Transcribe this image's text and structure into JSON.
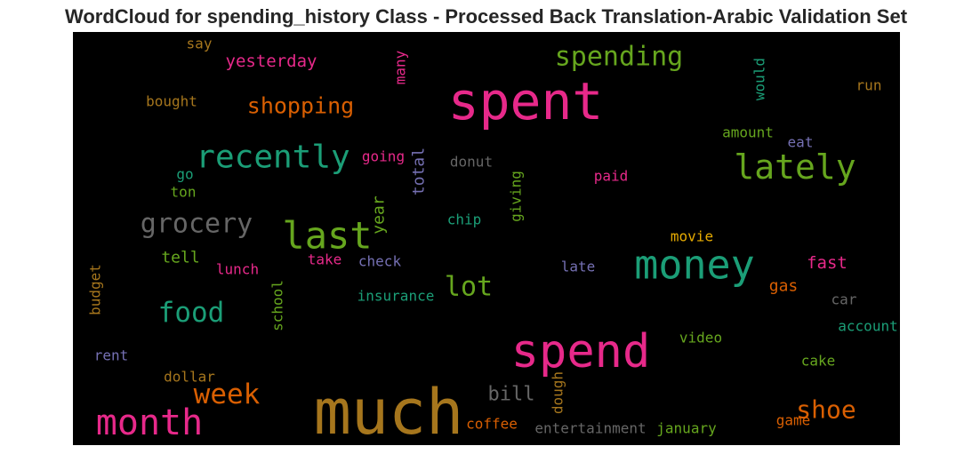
{
  "title": "WordCloud for spending_history Class - Processed Back Translation-Arabic Validation Set",
  "chart_data": {
    "type": "wordcloud",
    "title": "WordCloud for spending_history Class - Processed Back Translation-Arabic Validation Set",
    "background": "#000000",
    "palette": "Dark2",
    "words": [
      {
        "text": "much",
        "color": "#a6761d",
        "orientation": "horizontal"
      },
      {
        "text": "spent",
        "color": "#e7298a",
        "orientation": "horizontal"
      },
      {
        "text": "spend",
        "color": "#e7298a",
        "orientation": "horizontal"
      },
      {
        "text": "money",
        "color": "#1b9e77",
        "orientation": "horizontal"
      },
      {
        "text": "last",
        "color": "#66a61e",
        "orientation": "horizontal"
      },
      {
        "text": "month",
        "color": "#e7298a",
        "orientation": "horizontal"
      },
      {
        "text": "recently",
        "color": "#1b9e77",
        "orientation": "horizontal"
      },
      {
        "text": "lately",
        "color": "#66a61e",
        "orientation": "horizontal"
      },
      {
        "text": "grocery",
        "color": "#666666",
        "orientation": "horizontal"
      },
      {
        "text": "food",
        "color": "#1b9e77",
        "orientation": "horizontal"
      },
      {
        "text": "spending",
        "color": "#66a61e",
        "orientation": "horizontal"
      },
      {
        "text": "week",
        "color": "#d95f02",
        "orientation": "horizontal"
      },
      {
        "text": "shoe",
        "color": "#d95f02",
        "orientation": "horizontal"
      },
      {
        "text": "lot",
        "color": "#66a61e",
        "orientation": "horizontal"
      },
      {
        "text": "shopping",
        "color": "#d95f02",
        "orientation": "horizontal"
      },
      {
        "text": "yesterday",
        "color": "#e7298a",
        "orientation": "horizontal"
      },
      {
        "text": "bill",
        "color": "#666666",
        "orientation": "horizontal"
      },
      {
        "text": "total",
        "color": "#7570b3",
        "orientation": "vertical"
      },
      {
        "text": "year",
        "color": "#66a61e",
        "orientation": "vertical"
      },
      {
        "text": "fast",
        "color": "#e7298a",
        "orientation": "horizontal"
      },
      {
        "text": "gas",
        "color": "#d95f02",
        "orientation": "horizontal"
      },
      {
        "text": "dough",
        "color": "#a6761d",
        "orientation": "vertical"
      },
      {
        "text": "many",
        "color": "#e7298a",
        "orientation": "vertical"
      },
      {
        "text": "would",
        "color": "#1b9e77",
        "orientation": "vertical"
      },
      {
        "text": "budget",
        "color": "#a6761d",
        "orientation": "vertical"
      },
      {
        "text": "school",
        "color": "#66a61e",
        "orientation": "vertical"
      },
      {
        "text": "giving",
        "color": "#66a61e",
        "orientation": "vertical"
      },
      {
        "text": "tell",
        "color": "#66a61e",
        "orientation": "horizontal"
      },
      {
        "text": "coffee",
        "color": "#d95f02",
        "orientation": "horizontal"
      },
      {
        "text": "game",
        "color": "#d95f02",
        "orientation": "horizontal"
      },
      {
        "text": "entertainment",
        "color": "#666666",
        "orientation": "horizontal"
      },
      {
        "text": "january",
        "color": "#66a61e",
        "orientation": "horizontal"
      },
      {
        "text": "insurance",
        "color": "#1b9e77",
        "orientation": "horizontal"
      },
      {
        "text": "account",
        "color": "#1b9e77",
        "orientation": "horizontal"
      },
      {
        "text": "amount",
        "color": "#66a61e",
        "orientation": "horizontal"
      },
      {
        "text": "bought",
        "color": "#a6761d",
        "orientation": "horizontal"
      },
      {
        "text": "dollar",
        "color": "#a6761d",
        "orientation": "horizontal"
      },
      {
        "text": "lunch",
        "color": "#e7298a",
        "orientation": "horizontal"
      },
      {
        "text": "donut",
        "color": "#666666",
        "orientation": "horizontal"
      },
      {
        "text": "going",
        "color": "#e7298a",
        "orientation": "horizontal"
      },
      {
        "text": "check",
        "color": "#7570b3",
        "orientation": "horizontal"
      },
      {
        "text": "movie",
        "color": "#e6ab02",
        "orientation": "horizontal"
      },
      {
        "text": "video",
        "color": "#66a61e",
        "orientation": "horizontal"
      },
      {
        "text": "cake",
        "color": "#66a61e",
        "orientation": "horizontal"
      },
      {
        "text": "chip",
        "color": "#1b9e77",
        "orientation": "horizontal"
      },
      {
        "text": "take",
        "color": "#e7298a",
        "orientation": "horizontal"
      },
      {
        "text": "paid",
        "color": "#e7298a",
        "orientation": "horizontal"
      },
      {
        "text": "late",
        "color": "#7570b3",
        "orientation": "horizontal"
      },
      {
        "text": "rent",
        "color": "#7570b3",
        "orientation": "horizontal"
      },
      {
        "text": "run",
        "color": "#a6761d",
        "orientation": "horizontal"
      },
      {
        "text": "car",
        "color": "#666666",
        "orientation": "horizontal"
      },
      {
        "text": "eat",
        "color": "#7570b3",
        "orientation": "horizontal"
      },
      {
        "text": "say",
        "color": "#a6761d",
        "orientation": "horizontal"
      },
      {
        "text": "ton",
        "color": "#66a61e",
        "orientation": "horizontal"
      },
      {
        "text": "go",
        "color": "#1b9e77",
        "orientation": "horizontal"
      }
    ]
  }
}
